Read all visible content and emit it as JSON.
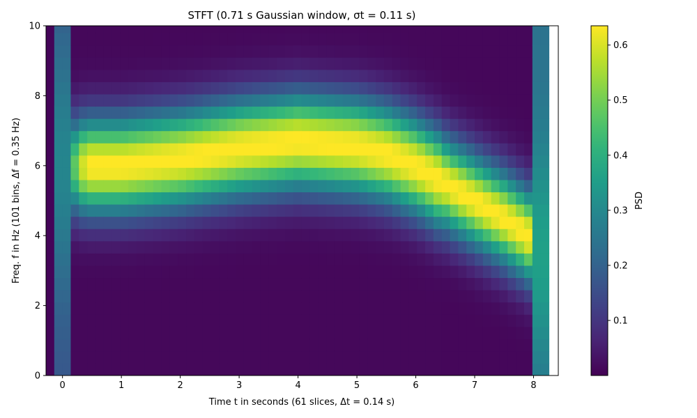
{
  "chart_data": {
    "type": "heatmap",
    "title": "STFT (0.71 s Gaussian window, σt = 0.11 s)",
    "xlabel": "Time t in seconds (61 slices, Δt = 0.14 s)",
    "ylabel": "Freq. f in Hz (101 bins, Δf = 0.35 Hz)",
    "colorbar_label": "PSD",
    "colormap": "viridis",
    "xlim": [
      -0.28,
      8.42
    ],
    "ylim": [
      0,
      10
    ],
    "clim": [
      0.0,
      0.635
    ],
    "x_ticks": [
      0,
      1,
      2,
      3,
      4,
      5,
      6,
      7,
      8
    ],
    "x_tick_labels": [
      "0",
      "1",
      "2",
      "3",
      "4",
      "5",
      "6",
      "7",
      "8"
    ],
    "y_ticks": [
      0,
      2,
      4,
      6,
      8,
      10
    ],
    "y_tick_labels": [
      "0",
      "2",
      "4",
      "6",
      "8",
      "10"
    ],
    "colorbar_ticks": [
      0.1,
      0.2,
      0.3,
      0.4,
      0.5,
      0.6
    ],
    "colorbar_tick_labels": [
      "0.1",
      "0.2",
      "0.3",
      "0.4",
      "0.5",
      "0.6"
    ],
    "time_slices": 61,
    "time_step": 0.14,
    "freq_bins": 101,
    "freq_step": 0.35,
    "signal_start": 0.0,
    "signal_end": 8.0,
    "ridge_frequency": {
      "t": [
        0,
        0.5,
        1,
        2,
        3,
        4,
        5,
        5.5,
        6,
        6.5,
        7,
        7.5,
        8
      ],
      "f": [
        6.0,
        6.0,
        6.0,
        6.2,
        6.5,
        6.7,
        6.55,
        6.35,
        6.0,
        5.5,
        5.0,
        4.5,
        3.9
      ]
    },
    "peak_psd": 0.63
  }
}
